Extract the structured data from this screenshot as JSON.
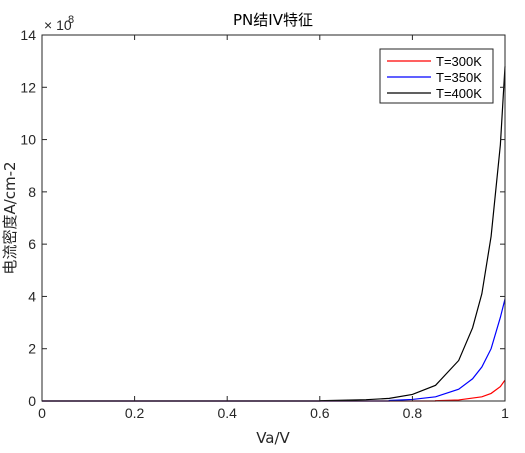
{
  "chart_data": {
    "type": "line",
    "title": "PN结IV特征",
    "xlabel": "Va/V",
    "ylabel": "电流密度A/cm-2",
    "xlim": [
      0,
      1
    ],
    "ylim": [
      0,
      14
    ],
    "y_multiplier": {
      "base": "× 10",
      "exponent": "8"
    },
    "x_ticks": [
      "0",
      "0.2",
      "0.4",
      "0.6",
      "0.8",
      "1"
    ],
    "y_ticks": [
      "0",
      "2",
      "4",
      "6",
      "8",
      "10",
      "12",
      "14"
    ],
    "grid": false,
    "legend_position": "top-right",
    "series": [
      {
        "name": "T=300K",
        "color": "#ff0000",
        "x": [
          0.85,
          0.9,
          0.95,
          0.97,
          0.99,
          1.0
        ],
        "y": [
          0.01,
          0.04,
          0.16,
          0.29,
          0.55,
          0.8
        ]
      },
      {
        "name": "T=350K",
        "color": "#0000ff",
        "x": [
          0.75,
          0.8,
          0.85,
          0.9,
          0.93,
          0.95,
          0.97,
          0.99,
          1.0
        ],
        "y": [
          0.02,
          0.06,
          0.16,
          0.45,
          0.85,
          1.3,
          2.0,
          3.2,
          3.9
        ]
      },
      {
        "name": "T=400K",
        "color": "#000000",
        "x": [
          0.6,
          0.7,
          0.75,
          0.8,
          0.85,
          0.9,
          0.93,
          0.95,
          0.97,
          0.99,
          1.0
        ],
        "y": [
          0.01,
          0.05,
          0.1,
          0.25,
          0.6,
          1.55,
          2.8,
          4.1,
          6.3,
          9.8,
          12.8
        ]
      }
    ]
  }
}
